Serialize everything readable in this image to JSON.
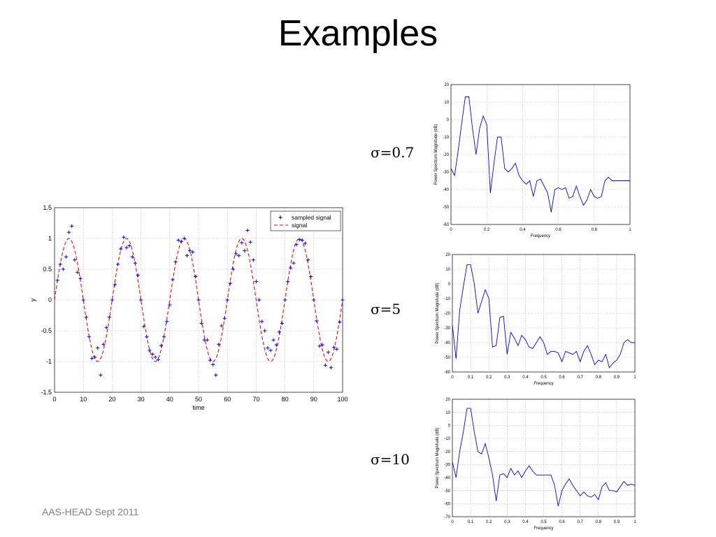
{
  "slide": {
    "title": "Examples",
    "footer": "AAS-HEAD Sept 2011"
  },
  "panels": [
    {
      "sigma_symbol": "σ",
      "sigma_value": "=0.7"
    },
    {
      "sigma_symbol": "σ",
      "sigma_value": "=5"
    },
    {
      "sigma_symbol": "σ",
      "sigma_value": "=10"
    }
  ],
  "colors": {
    "sampled": "#0000ff",
    "signal": "#ff0000",
    "spectrum": "#0000ff",
    "grid": "#b0b0b0"
  },
  "chart_data": [
    {
      "type": "line",
      "xlabel": "time",
      "ylabel": "y",
      "xlim": [
        0,
        100
      ],
      "ylim": [
        -1.5,
        1.5
      ],
      "xticks": [
        0,
        10,
        20,
        30,
        40,
        50,
        60,
        70,
        80,
        90,
        100
      ],
      "yticks": [
        -1.5,
        -1,
        -0.5,
        0,
        0.5,
        1,
        1.5
      ],
      "grid": true,
      "legend_position": "top-right",
      "series": [
        {
          "name": "sampled signal",
          "style": "markers-plus",
          "x": [
            1,
            2,
            3,
            4,
            5,
            6,
            7,
            8,
            9,
            10,
            11,
            12,
            13,
            14,
            15,
            16,
            17,
            18,
            19,
            20,
            21,
            22,
            23,
            24,
            25,
            26,
            27,
            28,
            29,
            30,
            31,
            32,
            33,
            34,
            35,
            36,
            37,
            38,
            39,
            40,
            41,
            42,
            43,
            44,
            45,
            46,
            47,
            48,
            49,
            50,
            51,
            52,
            53,
            54,
            55,
            56,
            57,
            58,
            59,
            60,
            61,
            62,
            63,
            64,
            65,
            66,
            67,
            68,
            69,
            70,
            71,
            72,
            73,
            74,
            75,
            76,
            77,
            78,
            79,
            80,
            81,
            82,
            83,
            84,
            85,
            86,
            87,
            88,
            89,
            90,
            91,
            92,
            93,
            94,
            95,
            96,
            97,
            98,
            99,
            100
          ],
          "y": [
            0.32,
            0.58,
            0.5,
            0.7,
            1.1,
            1.2,
            0.65,
            0.45,
            0.35,
            0.0,
            -0.28,
            -0.6,
            -0.95,
            -0.93,
            -0.78,
            -1.22,
            -0.72,
            -0.45,
            -0.28,
            0.0,
            0.25,
            0.58,
            0.83,
            1.02,
            0.85,
            0.88,
            0.7,
            0.6,
            0.4,
            0.0,
            -0.43,
            -0.6,
            -0.82,
            -0.88,
            -0.93,
            -0.97,
            -0.74,
            -0.6,
            -0.35,
            -0.08,
            0.33,
            0.62,
            0.97,
            0.95,
            1.0,
            0.72,
            0.8,
            0.78,
            0.38,
            0.0,
            -0.38,
            -0.65,
            -0.65,
            -0.98,
            -1.05,
            -1.22,
            -0.72,
            -0.42,
            -0.3,
            0.0,
            0.27,
            0.5,
            0.75,
            0.72,
            0.93,
            0.8,
            1.13,
            0.94,
            0.65,
            0.3,
            0.0,
            -0.35,
            -0.5,
            -0.78,
            -0.82,
            -0.65,
            -0.73,
            -0.52,
            -0.38,
            0.0,
            0.3,
            0.52,
            0.6,
            0.9,
            0.98,
            0.97,
            0.92,
            0.65,
            0.38,
            0.0,
            -0.34,
            -0.75,
            -0.73,
            -1.06,
            -0.85,
            -1.1,
            -0.77,
            -0.8,
            -0.36,
            0.0
          ]
        },
        {
          "name": "signal",
          "style": "dashed-line",
          "amplitude": 1,
          "period": 20
        }
      ]
    },
    {
      "type": "line",
      "ylabel": "Power Spectrum Magnitude (dB)",
      "xlabel": "Frequency",
      "xlim": [
        0,
        1
      ],
      "ylim": [
        -60,
        20
      ],
      "xticks": [
        0,
        0.2,
        0.4,
        0.6,
        0.8,
        1
      ],
      "xtick_labels": [
        "0",
        "0.2",
        "0.4",
        "0.6",
        "0.8",
        "1"
      ],
      "yticks": [
        -60,
        -50,
        -40,
        -30,
        -20,
        -10,
        0,
        10,
        20
      ],
      "grid": true,
      "series": [
        {
          "x": [
            0,
            0.02,
            0.04,
            0.06,
            0.08,
            0.1,
            0.12,
            0.14,
            0.16,
            0.18,
            0.2,
            0.22,
            0.24,
            0.26,
            0.28,
            0.3,
            0.32,
            0.34,
            0.36,
            0.38,
            0.4,
            0.42,
            0.44,
            0.46,
            0.48,
            0.5,
            0.52,
            0.54,
            0.56,
            0.58,
            0.6,
            0.62,
            0.64,
            0.66,
            0.68,
            0.7,
            0.72,
            0.74,
            0.76,
            0.78,
            0.8,
            0.82,
            0.84,
            0.86,
            0.88,
            0.9,
            0.92,
            0.94,
            0.96,
            0.98,
            1.0
          ],
          "y": [
            -28,
            -32,
            -18,
            -2,
            13,
            13,
            -5,
            -20,
            -5,
            2,
            -3,
            -42,
            -25,
            -10,
            -10,
            -28,
            -30,
            -28,
            -25,
            -32,
            -35,
            -37,
            -35,
            -44,
            -35,
            -34,
            -38,
            -42,
            -53,
            -40,
            -39,
            -40,
            -39,
            -45,
            -44,
            -38,
            -44,
            -49,
            -46,
            -40,
            -44,
            -45,
            -44,
            -35,
            -33,
            -35,
            -35,
            -35,
            -35,
            -35,
            -35
          ]
        }
      ]
    },
    {
      "type": "line",
      "ylabel": "Power Spectrum Magnitude (dB)",
      "xlabel": "Frequency",
      "xlim": [
        0,
        1
      ],
      "ylim": [
        -60,
        20
      ],
      "xticks": [
        0,
        0.1,
        0.2,
        0.3,
        0.4,
        0.5,
        0.6,
        0.7,
        0.8,
        0.9,
        1
      ],
      "xtick_labels": [
        "0",
        "0.1",
        "0.2",
        "0.3",
        "0.4",
        "0.5",
        "0.6",
        "0.7",
        "0.8",
        "0.9",
        "1"
      ],
      "yticks": [
        -60,
        -50,
        -40,
        -30,
        -20,
        -10,
        0,
        10,
        20
      ],
      "grid": true,
      "series": [
        {
          "x": [
            0,
            0.02,
            0.04,
            0.06,
            0.08,
            0.1,
            0.12,
            0.14,
            0.16,
            0.18,
            0.2,
            0.22,
            0.24,
            0.26,
            0.28,
            0.3,
            0.32,
            0.34,
            0.36,
            0.38,
            0.4,
            0.42,
            0.44,
            0.46,
            0.48,
            0.5,
            0.52,
            0.54,
            0.56,
            0.58,
            0.6,
            0.62,
            0.64,
            0.66,
            0.68,
            0.7,
            0.72,
            0.74,
            0.76,
            0.78,
            0.8,
            0.82,
            0.84,
            0.86,
            0.88,
            0.9,
            0.92,
            0.94,
            0.96,
            0.98,
            1.0
          ],
          "y": [
            -28,
            -51,
            -18,
            -2,
            13,
            13,
            0,
            -20,
            -12,
            -4,
            -10,
            -43,
            -42,
            -23,
            -22,
            -48,
            -33,
            -37,
            -42,
            -35,
            -38,
            -43,
            -44,
            -40,
            -36,
            -40,
            -48,
            -46,
            -46,
            -47,
            -53,
            -46,
            -47,
            -48,
            -46,
            -53,
            -46,
            -42,
            -48,
            -55,
            -52,
            -53,
            -48,
            -57,
            -54,
            -52,
            -48,
            -40,
            -38,
            -40,
            -40
          ]
        }
      ]
    },
    {
      "type": "line",
      "ylabel": "Power Spectrum Magnitude (dB)",
      "xlabel": "Frequency",
      "xlim": [
        0,
        1
      ],
      "ylim": [
        -70,
        20
      ],
      "xticks": [
        0,
        0.1,
        0.2,
        0.3,
        0.4,
        0.5,
        0.6,
        0.7,
        0.8,
        0.9,
        1
      ],
      "xtick_labels": [
        "0",
        "0.1",
        "0.2",
        "0.3",
        "0.4",
        "0.5",
        "0.6",
        "0.7",
        "0.8",
        "0.9",
        "1"
      ],
      "yticks": [
        -70,
        -60,
        -50,
        -40,
        -30,
        -20,
        -10,
        0,
        10,
        20
      ],
      "grid": true,
      "series": [
        {
          "x": [
            0,
            0.02,
            0.04,
            0.06,
            0.08,
            0.1,
            0.12,
            0.14,
            0.16,
            0.18,
            0.2,
            0.22,
            0.24,
            0.26,
            0.28,
            0.3,
            0.32,
            0.34,
            0.36,
            0.38,
            0.4,
            0.42,
            0.44,
            0.46,
            0.48,
            0.5,
            0.52,
            0.54,
            0.56,
            0.58,
            0.6,
            0.62,
            0.64,
            0.66,
            0.68,
            0.7,
            0.72,
            0.74,
            0.76,
            0.78,
            0.8,
            0.82,
            0.84,
            0.86,
            0.88,
            0.9,
            0.92,
            0.94,
            0.96,
            0.98,
            1.0
          ],
          "y": [
            -28,
            -40,
            -20,
            -5,
            13,
            13,
            -5,
            -20,
            -22,
            -14,
            -25,
            -38,
            -58,
            -38,
            -37,
            -40,
            -33,
            -38,
            -35,
            -40,
            -35,
            -31,
            -35,
            -38,
            -38,
            -38,
            -38,
            -38,
            -46,
            -62,
            -50,
            -45,
            -41,
            -46,
            -50,
            -54,
            -51,
            -54,
            -55,
            -53,
            -57,
            -47,
            -44,
            -50,
            -50,
            -51,
            -47,
            -43,
            -46,
            -45,
            -46
          ]
        }
      ]
    }
  ]
}
